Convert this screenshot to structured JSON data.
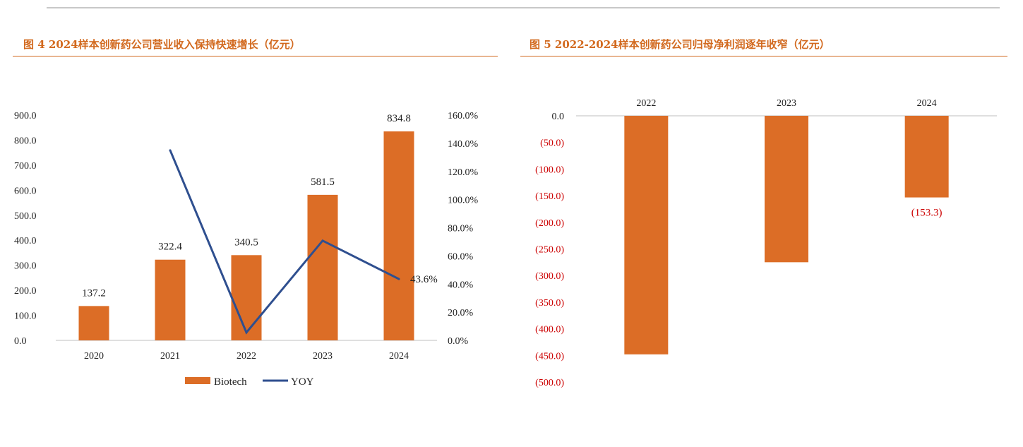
{
  "figure1": {
    "title": "图 4 2024样本创新药公司营业收入保持快速增长（亿元）"
  },
  "figure2": {
    "title": "图 5 2022-2024样本创新药公司归母净利润逐年收窄（亿元）"
  },
  "chart_data": [
    {
      "type": "bar",
      "categories": [
        "2020",
        "2021",
        "2022",
        "2023",
        "2024"
      ],
      "series": [
        {
          "name": "Biotech",
          "kind": "bar",
          "axis": "left",
          "color": "#dc6d26",
          "values": [
            137.2,
            322.4,
            340.5,
            581.5,
            834.8
          ],
          "labels": [
            "137.2",
            "322.4",
            "340.5",
            "581.5",
            "834.8"
          ]
        },
        {
          "name": "YOY",
          "kind": "line",
          "axis": "right",
          "color": "#2f4f8f",
          "values": [
            null,
            135.0,
            5.6,
            70.8,
            43.6
          ],
          "labels": [
            null,
            null,
            null,
            null,
            "43.6%"
          ]
        }
      ],
      "ylim_left": [
        0,
        900
      ],
      "yticks_left": [
        "0.0",
        "100.0",
        "200.0",
        "300.0",
        "400.0",
        "500.0",
        "600.0",
        "700.0",
        "800.0",
        "900.0"
      ],
      "ylim_right": [
        0,
        160
      ],
      "yticks_right": [
        "0.0%",
        "20.0%",
        "40.0%",
        "60.0%",
        "80.0%",
        "100.0%",
        "120.0%",
        "140.0%",
        "160.0%"
      ],
      "legend": "bottom",
      "grid": false
    },
    {
      "type": "bar",
      "categories": [
        "2022",
        "2023",
        "2024"
      ],
      "series": [
        {
          "name": "",
          "color": "#dc6d26",
          "values": [
            -448,
            -275,
            -153.3
          ],
          "labels": [
            null,
            null,
            "(153.3)"
          ]
        }
      ],
      "ylim": [
        -500,
        0
      ],
      "yticks": [
        "0.0",
        "(50.0)",
        "(100.0)",
        "(150.0)",
        "(200.0)",
        "(250.0)",
        "(300.0)",
        "(350.0)",
        "(400.0)",
        "(450.0)",
        "(500.0)"
      ],
      "negative_tick_color": "#cc0000",
      "xaxis_position": "top",
      "legend": "none",
      "grid": false
    }
  ]
}
